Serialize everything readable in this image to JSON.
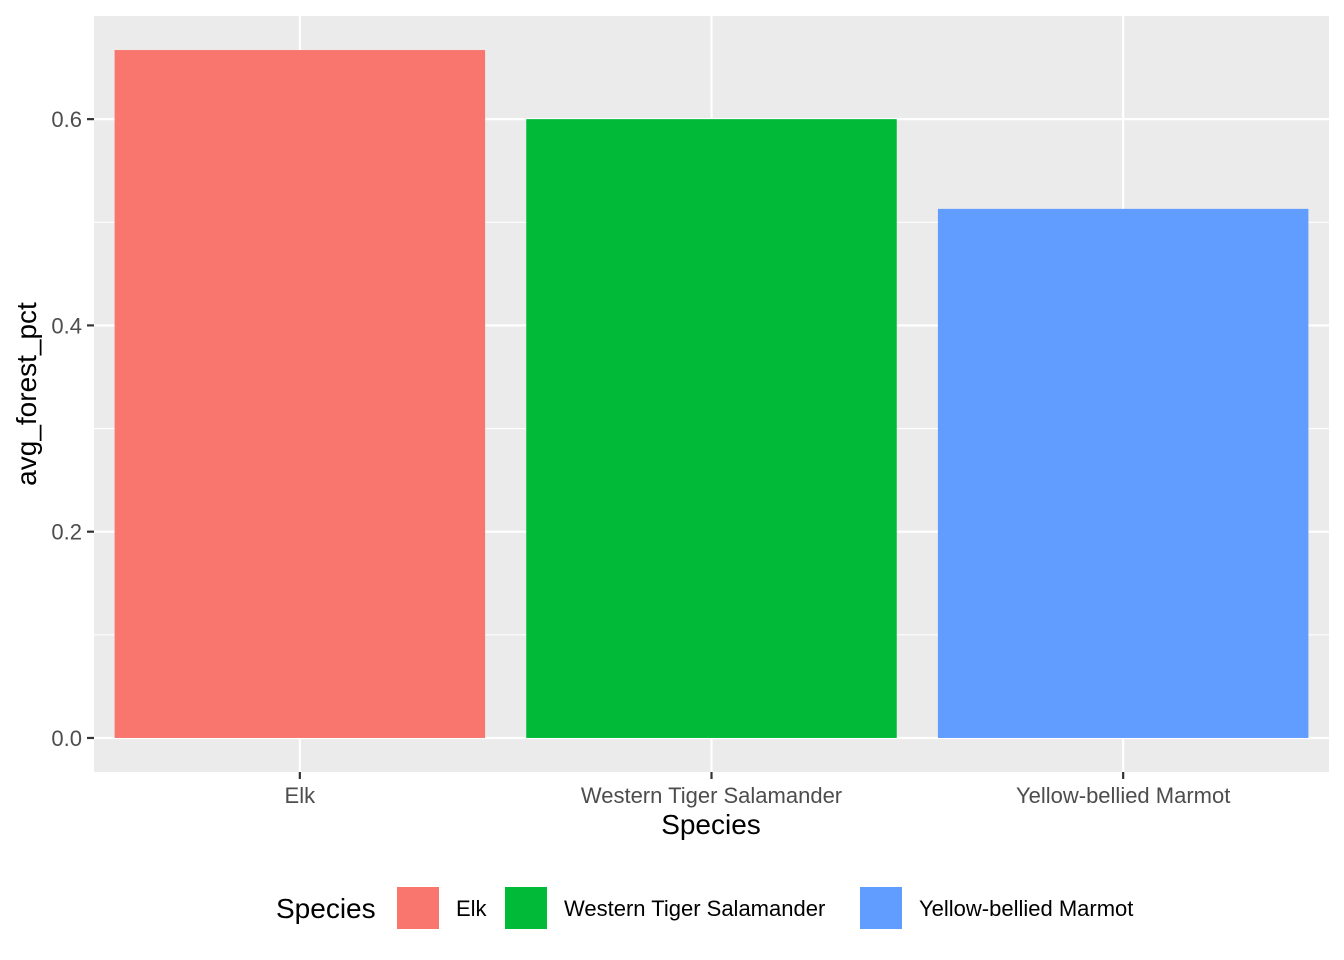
{
  "chart_data": {
    "type": "bar",
    "categories": [
      "Elk",
      "Western Tiger Salamander",
      "Yellow-bellied Marmot"
    ],
    "values": [
      0.667,
      0.6,
      0.513
    ],
    "colors": [
      "#F8766D",
      "#00BA38",
      "#619CFF"
    ],
    "xlabel": "Species",
    "ylabel": "avg_forest_pct",
    "ylim": [
      -0.033,
      0.7
    ],
    "yticks": [
      0.0,
      0.2,
      0.4,
      0.6
    ],
    "ytick_labels": [
      "0.0",
      "0.2",
      "0.4",
      "0.6"
    ],
    "grid": true,
    "panel_background": "#EBEBEB",
    "grid_color": "#FFFFFF",
    "legend": {
      "title": "Species",
      "position": "bottom",
      "entries": [
        "Elk",
        "Western Tiger Salamander",
        "Yellow-bellied Marmot"
      ]
    }
  }
}
